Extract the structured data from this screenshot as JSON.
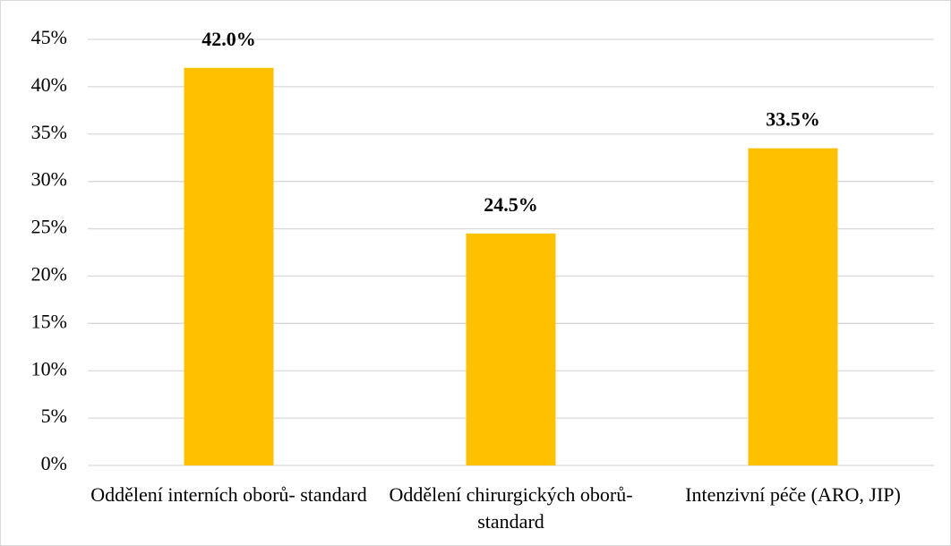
{
  "chart_data": {
    "type": "bar",
    "categories": [
      "Oddělení interních oborů- standard",
      "Oddělení chirurgických oborů- standard",
      "Intenzivní péče (ARO, JIP)"
    ],
    "values": [
      42.0,
      24.5,
      33.5
    ],
    "value_labels": [
      "42.0%",
      "24.5%",
      "33.5%"
    ],
    "color": "#ffc000",
    "ylim": [
      0,
      45
    ],
    "yticks": [
      {
        "value": 0,
        "label": "0%"
      },
      {
        "value": 5,
        "label": "5%"
      },
      {
        "value": 10,
        "label": "10%"
      },
      {
        "value": 15,
        "label": "15%"
      },
      {
        "value": 20,
        "label": "20%"
      },
      {
        "value": 25,
        "label": "25%"
      },
      {
        "value": 30,
        "label": "30%"
      },
      {
        "value": 35,
        "label": "35%"
      },
      {
        "value": 40,
        "label": "40%"
      },
      {
        "value": 45,
        "label": "45%"
      }
    ],
    "grid": true
  }
}
